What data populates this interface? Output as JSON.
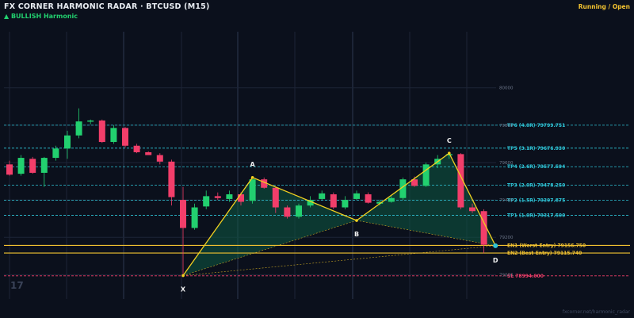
{
  "header": {
    "title": "FX CORNER HARMONIC RADAR  ·  BTCUSD (M15)",
    "subtitle": "▲ BULLISH  Harmonic",
    "status": "Running / Open"
  },
  "footer": {
    "credit": "fxcorner.net/harmonic_radar"
  },
  "watermark": "17",
  "colors": {
    "background": "#0b101c",
    "bull": "#22d06f",
    "bear": "#f23e6a",
    "pattern_line": "#f2d020",
    "tp_line": "#2ec4d6",
    "entry_line": "#f2c230",
    "sl_line": "#f23e6a",
    "pattern_fill": "#0f5a44"
  },
  "chart_data": {
    "type": "candlestick",
    "symbol": "BTCUSD",
    "timeframe": "M15",
    "y_range": [
      78870,
      80300
    ],
    "y_ticks": [
      80000,
      79800,
      79600,
      79400,
      79200,
      79000
    ],
    "y_tick_labels": [
      "80000",
      "79800",
      "79600",
      "79400",
      "79200",
      "79000"
    ],
    "candles": [
      {
        "o": 79590,
        "h": 79610,
        "l": 79530,
        "c": 79535
      },
      {
        "o": 79540,
        "h": 79640,
        "l": 79530,
        "c": 79625
      },
      {
        "o": 79620,
        "h": 79630,
        "l": 79540,
        "c": 79545
      },
      {
        "o": 79545,
        "h": 79630,
        "l": 79470,
        "c": 79625
      },
      {
        "o": 79625,
        "h": 79690,
        "l": 79610,
        "c": 79675
      },
      {
        "o": 79675,
        "h": 79770,
        "l": 79620,
        "c": 79745
      },
      {
        "o": 79745,
        "h": 79890,
        "l": 79730,
        "c": 79820
      },
      {
        "o": 79820,
        "h": 79830,
        "l": 79805,
        "c": 79825
      },
      {
        "o": 79825,
        "h": 79830,
        "l": 79705,
        "c": 79710
      },
      {
        "o": 79710,
        "h": 79800,
        "l": 79700,
        "c": 79785
      },
      {
        "o": 79785,
        "h": 79790,
        "l": 79680,
        "c": 79690
      },
      {
        "o": 79690,
        "h": 79700,
        "l": 79650,
        "c": 79655
      },
      {
        "o": 79655,
        "h": 79660,
        "l": 79640,
        "c": 79640
      },
      {
        "o": 79640,
        "h": 79650,
        "l": 79590,
        "c": 79605
      },
      {
        "o": 79605,
        "h": 79615,
        "l": 79370,
        "c": 79415
      },
      {
        "o": 79400,
        "h": 79470,
        "l": 78990,
        "c": 79250
      },
      {
        "o": 79250,
        "h": 79380,
        "l": 79240,
        "c": 79360
      },
      {
        "o": 79365,
        "h": 79450,
        "l": 79350,
        "c": 79420
      },
      {
        "o": 79420,
        "h": 79440,
        "l": 79400,
        "c": 79410
      },
      {
        "o": 79405,
        "h": 79450,
        "l": 79390,
        "c": 79430
      },
      {
        "o": 79430,
        "h": 79440,
        "l": 79370,
        "c": 79390
      },
      {
        "o": 79395,
        "h": 79510,
        "l": 79380,
        "c": 79510
      },
      {
        "o": 79510,
        "h": 79520,
        "l": 79460,
        "c": 79465
      },
      {
        "o": 79465,
        "h": 79470,
        "l": 79330,
        "c": 79360
      },
      {
        "o": 79360,
        "h": 79370,
        "l": 79300,
        "c": 79310
      },
      {
        "o": 79310,
        "h": 79380,
        "l": 79300,
        "c": 79370
      },
      {
        "o": 79370,
        "h": 79420,
        "l": 79360,
        "c": 79400
      },
      {
        "o": 79405,
        "h": 79450,
        "l": 79400,
        "c": 79435
      },
      {
        "o": 79430,
        "h": 79440,
        "l": 79350,
        "c": 79360
      },
      {
        "o": 79360,
        "h": 79420,
        "l": 79350,
        "c": 79400
      },
      {
        "o": 79405,
        "h": 79450,
        "l": 79400,
        "c": 79435
      },
      {
        "o": 79430,
        "h": 79440,
        "l": 79380,
        "c": 79385
      },
      {
        "o": 79380,
        "h": 79400,
        "l": 79370,
        "c": 79390
      },
      {
        "o": 79390,
        "h": 79420,
        "l": 79385,
        "c": 79410
      },
      {
        "o": 79410,
        "h": 79520,
        "l": 79400,
        "c": 79510
      },
      {
        "o": 79510,
        "h": 79525,
        "l": 79470,
        "c": 79475
      },
      {
        "o": 79475,
        "h": 79600,
        "l": 79470,
        "c": 79590
      },
      {
        "o": 79590,
        "h": 79640,
        "l": 79570,
        "c": 79620
      },
      {
        "o": 79640,
        "h": 79650,
        "l": 79620,
        "c": 79645
      },
      {
        "o": 79645,
        "h": 79650,
        "l": 79350,
        "c": 79360
      },
      {
        "o": 79360,
        "h": 79380,
        "l": 79330,
        "c": 79340
      },
      {
        "o": 79340,
        "h": 79350,
        "l": 79115,
        "c": 79160
      }
    ],
    "pattern": {
      "direction": "Bullish",
      "points": [
        {
          "label": "X",
          "index": 15,
          "price": 78995
        },
        {
          "label": "A",
          "index": 21,
          "price": 79520
        },
        {
          "label": "B",
          "index": 30,
          "price": 79290
        },
        {
          "label": "C",
          "index": 38,
          "price": 79650
        },
        {
          "label": "D",
          "index": 42,
          "price": 79155
        }
      ]
    },
    "levels": [
      {
        "name": "tp6",
        "label": "TP6 (4.0R)  79799.751",
        "price": 79799.751,
        "kind": "tp"
      },
      {
        "name": "tp5",
        "label": "TP5 (3.1R)  79676.930",
        "price": 79676.93,
        "kind": "tp"
      },
      {
        "name": "tp4",
        "label": "TP4 (2.6R)  79577.594",
        "price": 79577.594,
        "kind": "tp"
      },
      {
        "name": "tp3",
        "label": "TP3 (2.0R)  79478.250",
        "price": 79478.25,
        "kind": "tp"
      },
      {
        "name": "tp2",
        "label": "TP2 (1.5R)  79397.875",
        "price": 79397.875,
        "kind": "tp"
      },
      {
        "name": "tp1",
        "label": "TP1 (1.0R)  79317.500",
        "price": 79317.5,
        "kind": "tp"
      },
      {
        "name": "en1",
        "label": "EN1 (Worst-Entry)  79156.750",
        "price": 79156.75,
        "kind": "entry"
      },
      {
        "name": "en2",
        "label": "EN2 (Best-Entry)  79115.740",
        "price": 79115.74,
        "kind": "entry"
      },
      {
        "name": "sl",
        "label": "SL  78994.000",
        "price": 78994.0,
        "kind": "sl"
      }
    ]
  }
}
